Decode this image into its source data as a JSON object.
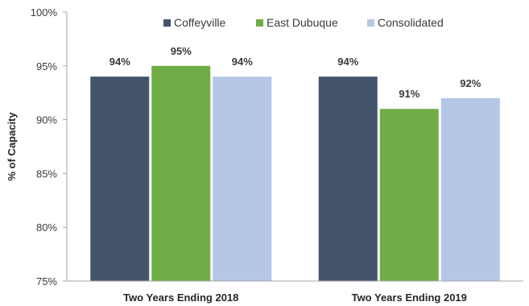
{
  "chart_data": {
    "type": "bar",
    "title": "",
    "xlabel": "",
    "ylabel": "% of Capacity",
    "ylim": [
      75,
      100
    ],
    "yticks": [
      "75%",
      "80%",
      "85%",
      "90%",
      "95%",
      "100%"
    ],
    "ytick_values": [
      75,
      80,
      85,
      90,
      95,
      100
    ],
    "grid": false,
    "legend_position": "top",
    "categories": [
      "Two Years Ending 2018",
      "Two Years Ending 2019"
    ],
    "series": [
      {
        "name": "Coffeyville",
        "color": "#44546a",
        "values": [
          94,
          94
        ],
        "labels": [
          "94%",
          "94%"
        ]
      },
      {
        "name": "East Dubuque",
        "color": "#70ad47",
        "values": [
          95,
          91
        ],
        "labels": [
          "95%",
          "91%"
        ]
      },
      {
        "name": "Consolidated",
        "color": "#b4c7e7",
        "values": [
          94,
          92
        ],
        "labels": [
          "94%",
          "92%"
        ]
      }
    ]
  }
}
